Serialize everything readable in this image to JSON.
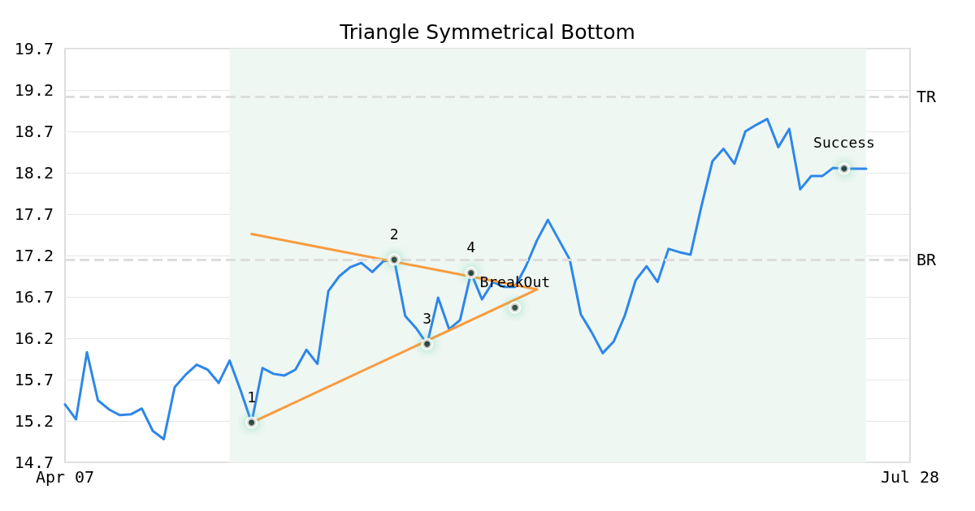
{
  "chart_data": {
    "type": "line",
    "title": "Triangle Symmetrical Bottom",
    "categories": [
      "Apr 07",
      null,
      null,
      null,
      null,
      null,
      null,
      null,
      null,
      null,
      null,
      null,
      null,
      null,
      null,
      null,
      null,
      null,
      null,
      null,
      null,
      null,
      null,
      null,
      null,
      null,
      null,
      null,
      null,
      null,
      null,
      null,
      null,
      null,
      null,
      null,
      null,
      null,
      null,
      null,
      null,
      null,
      null,
      null,
      null,
      null,
      null,
      null,
      null,
      null,
      null,
      null,
      null,
      null,
      null,
      null,
      null,
      null,
      null,
      null,
      null,
      null,
      null,
      null,
      null,
      null,
      null,
      null,
      null,
      null,
      null,
      null,
      null,
      null,
      null,
      null,
      null,
      "Jul 28"
    ],
    "series": [
      {
        "color": "#2d87e9",
        "marker": "none",
        "values": [
          15.4,
          15.22,
          16.03,
          15.45,
          15.34,
          15.27,
          15.28,
          15.35,
          15.08,
          14.98,
          15.61,
          15.76,
          15.88,
          15.82,
          15.66,
          15.93,
          15.57,
          15.18,
          15.84,
          15.77,
          15.75,
          15.82,
          16.06,
          15.89,
          16.77,
          16.95,
          17.06,
          17.11,
          17.0,
          17.13,
          17.15,
          16.47,
          16.32,
          16.13,
          16.69,
          16.31,
          16.42,
          16.99,
          16.67,
          16.88,
          16.82,
          16.82,
          17.07,
          17.38,
          17.63,
          17.39,
          17.15,
          16.49,
          16.27,
          16.02,
          16.16,
          16.47,
          16.9,
          17.07,
          16.88,
          17.28,
          17.24,
          17.21,
          17.8,
          18.34,
          18.49,
          18.31,
          18.7,
          18.78,
          18.85,
          18.51,
          18.73,
          18.0,
          18.16,
          18.16,
          18.26,
          18.25,
          18.25,
          18.25,
          null,
          null,
          null,
          null
        ]
      },
      {
        "color": "#f99b3e",
        "marker": "none",
        "values": [
          null,
          null,
          null,
          null,
          null,
          null,
          null,
          null,
          null,
          null,
          null,
          null,
          null,
          null,
          null,
          null,
          null,
          17.46,
          null,
          null,
          null,
          null,
          null,
          null,
          null,
          null,
          null,
          null,
          null,
          null,
          null,
          null,
          null,
          null,
          null,
          null,
          null,
          null,
          null,
          null,
          null,
          null,
          null,
          16.79,
          null,
          null,
          null,
          null,
          null,
          null,
          null,
          null,
          null,
          null,
          null,
          null,
          null,
          null,
          null,
          null,
          null,
          null,
          null,
          null,
          null,
          null,
          null,
          null,
          null,
          null,
          null,
          null,
          null,
          null,
          null,
          null,
          null,
          null
        ]
      },
      {
        "color": "#f99b3e",
        "marker": "none",
        "values": [
          null,
          null,
          null,
          null,
          null,
          null,
          null,
          null,
          null,
          null,
          null,
          null,
          null,
          null,
          null,
          null,
          null,
          15.18,
          null,
          null,
          null,
          null,
          null,
          null,
          null,
          null,
          null,
          null,
          null,
          null,
          null,
          null,
          null,
          null,
          null,
          null,
          null,
          null,
          null,
          null,
          null,
          null,
          null,
          16.79,
          null,
          null,
          null,
          null,
          null,
          null,
          null,
          null,
          null,
          null,
          null,
          null,
          null,
          null,
          null,
          null,
          null,
          null,
          null,
          null,
          null,
          null,
          null,
          null,
          null,
          null,
          null,
          null,
          null,
          null,
          null,
          null,
          null,
          null
        ]
      },
      {
        "type": "scatter",
        "color": "#000000",
        "marker": "circle",
        "values": [
          null,
          null,
          null,
          null,
          null,
          null,
          null,
          null,
          null,
          null,
          null,
          null,
          null,
          null,
          null,
          null,
          null,
          15.18,
          null,
          null,
          null,
          null,
          null,
          null,
          null,
          null,
          null,
          null,
          null,
          null,
          17.15,
          null,
          null,
          16.13,
          null,
          null,
          null,
          16.99,
          null,
          null,
          null,
          16.57,
          null,
          null,
          null,
          null,
          null,
          null,
          null,
          null,
          null,
          null,
          null,
          null,
          null,
          null,
          null,
          null,
          null,
          null,
          null,
          null,
          null,
          null,
          null,
          null,
          null,
          null,
          null,
          null,
          null,
          18.25,
          null,
          null,
          null,
          null,
          null,
          null
        ]
      }
    ],
    "ylim": [
      14.7,
      19.7
    ],
    "yticks": [
      14.7,
      15.2,
      15.7,
      16.2,
      16.7,
      17.2,
      17.7,
      18.2,
      18.7,
      19.2,
      19.7
    ],
    "grid": "y",
    "line_style": "solid",
    "ref_lines": [
      {
        "axis": "y",
        "value": 19.12,
        "label": "TR",
        "color": "#dddddd",
        "line_style": "dashed"
      },
      {
        "axis": "y",
        "value": 17.15,
        "label": "BR",
        "color": "#dddddd",
        "line_style": "dashed"
      }
    ],
    "annotations": [
      {
        "text": "1",
        "y": 15.18
      },
      {
        "text": "2",
        "y": 17.15
      },
      {
        "text": "3",
        "y": 16.13
      },
      {
        "text": "4",
        "y": 16.99
      },
      {
        "text": "BreakOut",
        "y": 16.57
      },
      {
        "text": "Success",
        "y": 18.25
      }
    ]
  }
}
